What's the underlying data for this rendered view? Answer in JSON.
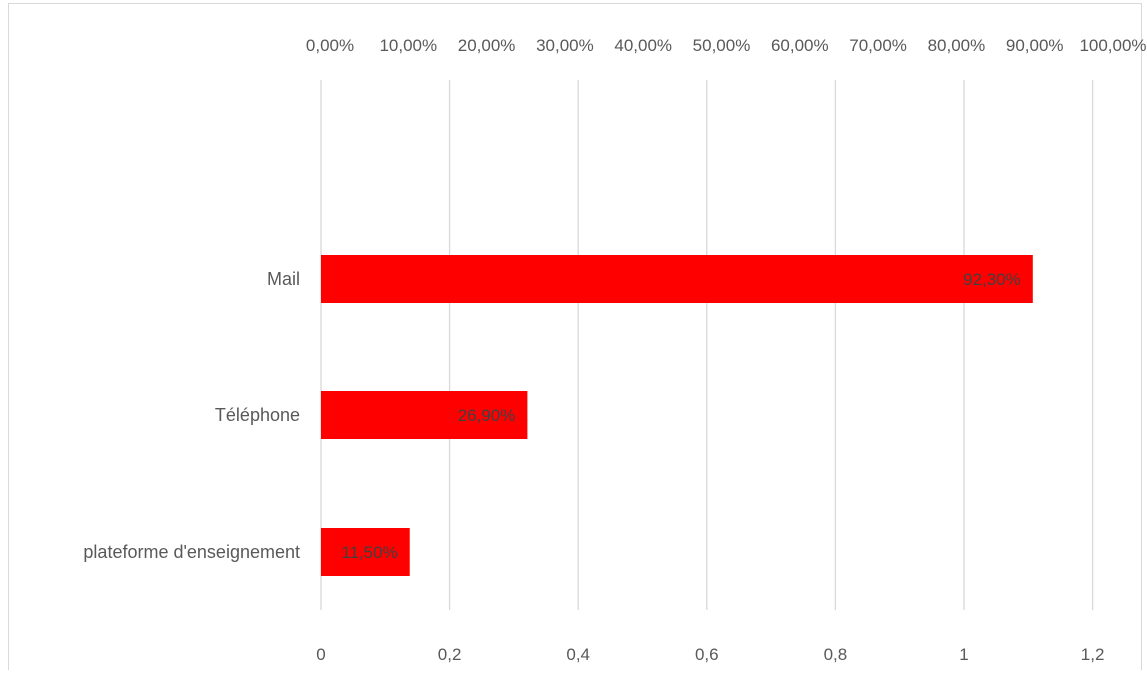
{
  "chart_data": {
    "type": "bar",
    "orientation": "horizontal",
    "categories": [
      "Mail",
      "Téléphone",
      "plateforme d'enseignement"
    ],
    "values": [
      1.107,
      0.321,
      0.138
    ],
    "data_labels": [
      "92,30%",
      "26,90%",
      "11,50%"
    ],
    "bar_color": "#ff0000",
    "grid": true,
    "legend": "none",
    "xlim": [
      0,
      1.2
    ],
    "x_ticks": [
      0,
      0.2,
      0.4,
      0.6,
      0.8,
      1,
      1.2
    ],
    "x_tick_labels": [
      "0",
      "0,2",
      "0,4",
      "0,6",
      "0,8",
      "1",
      "1,2"
    ],
    "x2_ticks": [
      0,
      0.1,
      0.2,
      0.3,
      0.4,
      0.5,
      0.6,
      0.7,
      0.8,
      0.9,
      1.0
    ],
    "x2_tick_labels": [
      "0,00%",
      "10,00%",
      "20,00%",
      "30,00%",
      "40,00%",
      "50,00%",
      "60,00%",
      "70,00%",
      "80,00%",
      "90,00%",
      "100,00%"
    ],
    "x2lim": [
      0,
      1.0
    ]
  }
}
